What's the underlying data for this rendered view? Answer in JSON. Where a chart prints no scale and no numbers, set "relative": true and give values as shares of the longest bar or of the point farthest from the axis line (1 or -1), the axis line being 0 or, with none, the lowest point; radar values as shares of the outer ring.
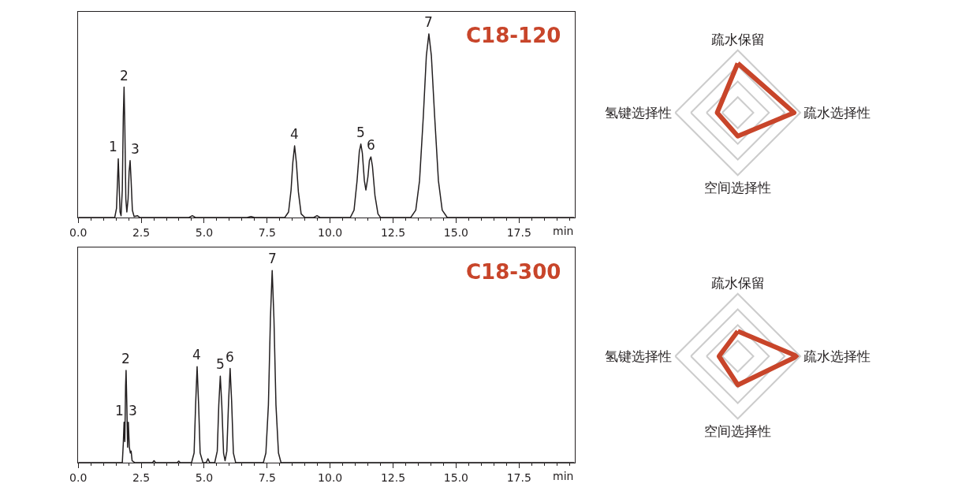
{
  "chart_data": [
    {
      "type": "line",
      "title": "C18-120",
      "xlabel": "min",
      "relative": true,
      "color": "#231f20",
      "tick_labels": "x",
      "xlim": [
        0,
        19.7
      ],
      "xticks": [
        {
          "value": 0,
          "label": "0.0"
        },
        {
          "value": 2.5,
          "label": "2.5"
        },
        {
          "value": 5,
          "label": "5.0"
        },
        {
          "value": 7.5,
          "label": "7.5"
        },
        {
          "value": 10,
          "label": "10.0"
        },
        {
          "value": 12.5,
          "label": "12.5"
        },
        {
          "value": 15,
          "label": "15.0"
        },
        {
          "value": 17.5,
          "label": "17.5"
        }
      ],
      "x": [
        0,
        1.45,
        1.52,
        1.56,
        1.59,
        1.62,
        1.66,
        1.7,
        1.75,
        1.79,
        1.82,
        1.85,
        1.89,
        1.93,
        1.98,
        2.02,
        2.06,
        2.1,
        2.15,
        2.22,
        2.35,
        2.45,
        4.4,
        4.53,
        4.65,
        6.7,
        6.86,
        7.0,
        8.2,
        8.35,
        8.45,
        8.52,
        8.59,
        8.66,
        8.74,
        8.85,
        9.0,
        9.35,
        9.48,
        9.6,
        10.8,
        10.95,
        11.07,
        11.16,
        11.22,
        11.28,
        11.36,
        11.42,
        11.5,
        11.56,
        11.62,
        11.68,
        11.78,
        11.9,
        12.0,
        13.2,
        13.4,
        13.55,
        13.7,
        13.82,
        13.92,
        14.02,
        14.15,
        14.3,
        14.45,
        14.65,
        19.7
      ],
      "values": [
        0,
        0,
        0.05,
        0.2,
        0.32,
        0.2,
        0.03,
        0.01,
        0.15,
        0.55,
        0.71,
        0.5,
        0.1,
        0.03,
        0.1,
        0.25,
        0.31,
        0.2,
        0.04,
        0.005,
        0.01,
        0,
        0,
        0.01,
        0,
        0,
        0.005,
        0,
        0,
        0.03,
        0.15,
        0.3,
        0.39,
        0.3,
        0.14,
        0.02,
        0,
        0,
        0.01,
        0,
        0,
        0.04,
        0.2,
        0.36,
        0.4,
        0.35,
        0.2,
        0.15,
        0.22,
        0.31,
        0.33,
        0.28,
        0.12,
        0.02,
        0,
        0,
        0.04,
        0.2,
        0.55,
        0.88,
        1,
        0.88,
        0.55,
        0.2,
        0.04,
        0,
        0
      ],
      "annotations": [
        {
          "text": "1",
          "x": 1.59,
          "y": 0.32
        },
        {
          "text": "2",
          "x": 1.82,
          "y": 0.71
        },
        {
          "text": "3",
          "x": 2.06,
          "y": 0.31
        },
        {
          "text": "4",
          "x": 8.59,
          "y": 0.39
        },
        {
          "text": "5",
          "x": 11.22,
          "y": 0.4
        },
        {
          "text": "6",
          "x": 11.62,
          "y": 0.33
        },
        {
          "text": "7",
          "x": 13.92,
          "y": 1
        }
      ]
    },
    {
      "type": "radar",
      "relative": true,
      "grid": true,
      "categories": [
        "疏水保留",
        "疏水选择性",
        "空间选择性",
        "氢键选择性"
      ],
      "series": [
        {
          "color": "#c8452a",
          "values": [
            0.79,
            0.9,
            0.375,
            0.33
          ]
        }
      ]
    },
    {
      "type": "line",
      "title": "C18-300",
      "xlabel": "min",
      "relative": true,
      "color": "#231f20",
      "tick_labels": "x",
      "xlim": [
        0,
        19.7
      ],
      "xticks": [
        {
          "value": 0,
          "label": "0.0"
        },
        {
          "value": 2.5,
          "label": "2.5"
        },
        {
          "value": 5,
          "label": "5.0"
        },
        {
          "value": 7.5,
          "label": "7.5"
        },
        {
          "value": 10,
          "label": "10.0"
        },
        {
          "value": 12.5,
          "label": "12.5"
        },
        {
          "value": 15,
          "label": "15.0"
        },
        {
          "value": 17.5,
          "label": "17.5"
        }
      ],
      "x": [
        0,
        1.75,
        1.79,
        1.82,
        1.85,
        1.88,
        1.9,
        1.93,
        1.96,
        1.99,
        2.03,
        2.07,
        2.1,
        2.14,
        2.25,
        2.95,
        3.01,
        3.07,
        3.93,
        3.99,
        4.05,
        4.5,
        4.6,
        4.66,
        4.72,
        4.78,
        4.84,
        4.95,
        5.08,
        5.15,
        5.22,
        5.42,
        5.52,
        5.58,
        5.64,
        5.7,
        5.77,
        5.83,
        5.9,
        5.97,
        6.03,
        6.09,
        6.16,
        6.25,
        7.35,
        7.45,
        7.55,
        7.63,
        7.7,
        7.77,
        7.85,
        7.95,
        8.05,
        19.7
      ],
      "values": [
        0,
        0,
        0.1,
        0.21,
        0.11,
        0.4,
        0.48,
        0.3,
        0.08,
        0.21,
        0.08,
        0.05,
        0.06,
        0.01,
        0,
        0,
        0.01,
        0,
        0,
        0.008,
        0,
        0,
        0.05,
        0.3,
        0.5,
        0.3,
        0.05,
        0,
        0,
        0.02,
        0,
        0,
        0.06,
        0.3,
        0.45,
        0.3,
        0.05,
        0.01,
        0.06,
        0.32,
        0.49,
        0.32,
        0.05,
        0,
        0,
        0.05,
        0.3,
        0.75,
        1,
        0.75,
        0.3,
        0.05,
        0,
        0
      ],
      "annotations": [
        {
          "text": "1",
          "x": 1.82,
          "y": 0.21
        },
        {
          "text": "2",
          "x": 1.9,
          "y": 0.48
        },
        {
          "text": "3",
          "x": 1.99,
          "y": 0.21
        },
        {
          "text": "4",
          "x": 4.72,
          "y": 0.5
        },
        {
          "text": "5",
          "x": 5.64,
          "y": 0.45
        },
        {
          "text": "6",
          "x": 6.03,
          "y": 0.49
        },
        {
          "text": "7",
          "x": 7.7,
          "y": 1
        }
      ]
    },
    {
      "type": "radar",
      "relative": true,
      "grid": true,
      "categories": [
        "疏水保留",
        "疏水选择性",
        "空间选择性",
        "氢键选择性"
      ],
      "series": [
        {
          "color": "#c8452a",
          "values": [
            0.4,
            0.95,
            0.46,
            0.3
          ]
        }
      ]
    }
  ]
}
